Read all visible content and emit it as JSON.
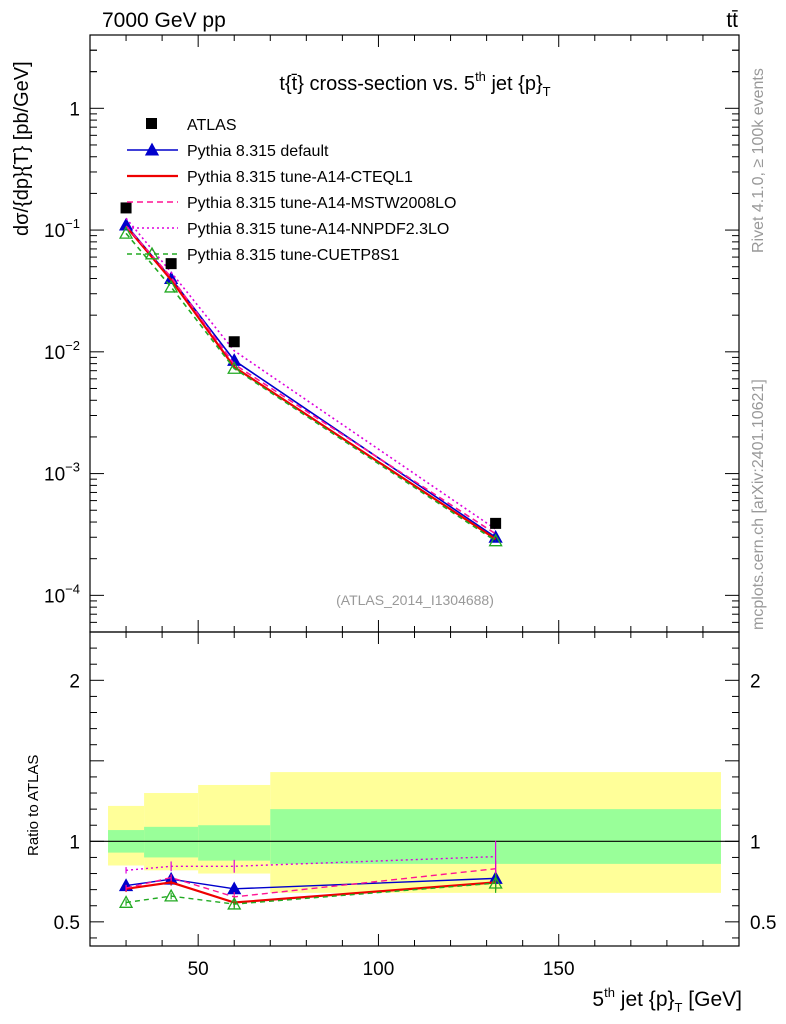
{
  "header": {
    "energy": "7000 GeV pp",
    "process": "tt̄"
  },
  "side_text": {
    "rivet": "Rivet 4.1.0, ≥ 100k events",
    "mcplots": "mcplots.cern.ch [arXiv:2401.10621]"
  },
  "chart_data": {
    "type": "line",
    "title": "t{t̄} cross-section vs. 5th jet {p}T",
    "title_parts": {
      "pre": "t{t̄} cross-section vs. 5",
      "sup": "th",
      "post": " jet {p}",
      "sub": "T"
    },
    "xlabel": "5th jet {p}T [GeV]",
    "xlabel_parts": {
      "pre": "5",
      "sup": "th",
      "post": " jet {p}",
      "sub": "T",
      "tail": " [GeV]"
    },
    "ylabel": "dσ/{dp}{T} [pb/GeV]",
    "ratio_ylabel": "Ratio to ATLAS",
    "analysis_tag": "(ATLAS_2014_I1304688)",
    "xlim": [
      20,
      200
    ],
    "ylim": [
      5e-05,
      4
    ],
    "yscale": "log",
    "ratio_ylim": [
      0.35,
      2.3
    ],
    "x_ticks": [
      50,
      100,
      150
    ],
    "x_tick_labels": [
      "50",
      "100",
      "150"
    ],
    "y_ticks": [
      {
        "value": 1,
        "label": "1"
      },
      {
        "value": 0.1,
        "label": "10",
        "exp": "−1"
      },
      {
        "value": 0.01,
        "label": "10",
        "exp": "−2"
      },
      {
        "value": 0.001,
        "label": "10",
        "exp": "−3"
      },
      {
        "value": 0.0001,
        "label": "10",
        "exp": "−4"
      }
    ],
    "ratio_ticks": [
      {
        "value": 0.5,
        "label": "0.5"
      },
      {
        "value": 1,
        "label": "1"
      },
      {
        "value": 2,
        "label": "2"
      }
    ],
    "x": [
      30,
      42.5,
      60,
      132.5
    ],
    "bins": [
      [
        25,
        35
      ],
      [
        35,
        50
      ],
      [
        50,
        70
      ],
      [
        70,
        195
      ]
    ],
    "data": {
      "name": "ATLAS",
      "values": [
        0.152,
        0.053,
        0.0121,
        0.00039
      ],
      "band_stat": [
        [
          0.93,
          1.07
        ],
        [
          0.9,
          1.09
        ],
        [
          0.88,
          1.1
        ],
        [
          0.86,
          1.2
        ]
      ],
      "band_total": [
        [
          0.85,
          1.22
        ],
        [
          0.82,
          1.3
        ],
        [
          0.8,
          1.35
        ],
        [
          0.68,
          1.43
        ]
      ]
    },
    "series": [
      {
        "name": "Pythia 8.315 default",
        "color": "#0000cc",
        "dash": "",
        "marker": "triangle-filled",
        "values": [
          0.11,
          0.04,
          0.0085,
          0.0003
        ],
        "ratio": [
          0.725,
          0.765,
          0.705,
          0.77
        ],
        "ratio_err": [
          0.02,
          0.02,
          0.03,
          0.05
        ]
      },
      {
        "name": "Pythia 8.315 tune-A14-CTEQL1",
        "color": "#ee0000",
        "dash": "",
        "marker": "none",
        "values": [
          0.107,
          0.039,
          0.0075,
          0.00029
        ],
        "ratio": [
          0.705,
          0.745,
          0.62,
          0.745
        ],
        "ratio_err": [
          0.02,
          0.02,
          0.03,
          0.05
        ]
      },
      {
        "name": "Pythia 8.315 tune-A14-MSTW2008LO",
        "color": "#ff1493",
        "dash": "6,4",
        "marker": "none",
        "values": [
          0.108,
          0.041,
          0.0079,
          0.00032
        ],
        "ratio": [
          0.71,
          0.775,
          0.655,
          0.83
        ],
        "ratio_err": [
          0.02,
          0.02,
          0.03,
          0.05
        ]
      },
      {
        "name": "Pythia 8.315 tune-A14-NNPDF2.3LO",
        "color": "#dd00dd",
        "dash": "2,3",
        "marker": "none",
        "values": [
          0.125,
          0.045,
          0.0102,
          0.00035
        ],
        "ratio": [
          0.82,
          0.845,
          0.845,
          0.905
        ],
        "ratio_err": [
          0.02,
          0.03,
          0.04,
          0.1
        ]
      },
      {
        "name": "Pythia 8.315 tune-CUETP8S1",
        "color": "#22aa22",
        "dash": "5,4",
        "marker": "triangle-open",
        "values": [
          0.094,
          0.034,
          0.0073,
          0.00028
        ],
        "ratio": [
          0.62,
          0.66,
          0.61,
          0.74
        ],
        "ratio_err": [
          0.02,
          0.02,
          0.03,
          0.06
        ]
      }
    ]
  }
}
